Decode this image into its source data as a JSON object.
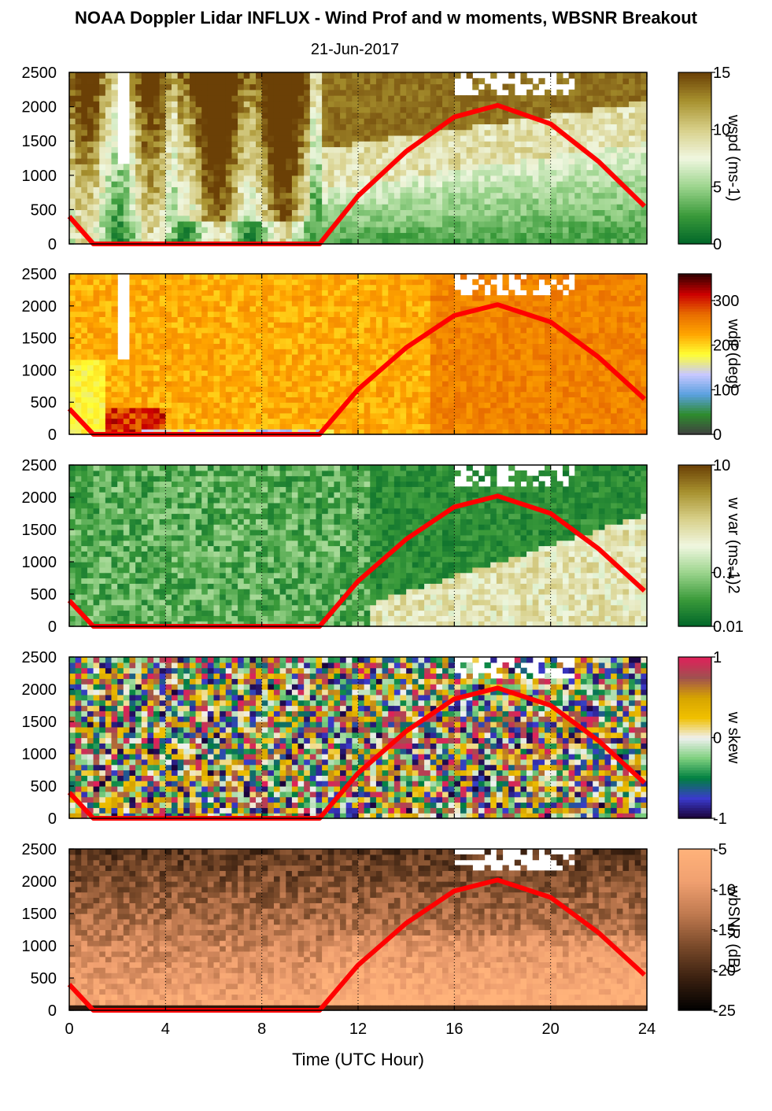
{
  "title": "NOAA Doppler Lidar INFLUX - Wind Prof and w moments, WBSNR Breakout",
  "subtitle": "21-Jun-2017",
  "xaxis": {
    "label": "Time (UTC Hour)",
    "ticks": [
      "0",
      "4",
      "8",
      "12",
      "16",
      "20",
      "24"
    ],
    "range": [
      0,
      24
    ]
  },
  "yaxis": {
    "ticks": [
      "0",
      "500",
      "1000",
      "1500",
      "2000",
      "2500"
    ],
    "range": [
      0,
      2500
    ]
  },
  "chart_data": [
    {
      "type": "heatmap",
      "variable": "wspd",
      "colorbar_label": "wspd (ms-1)",
      "colorbar_ticks": [
        "0",
        "5",
        "10",
        "15"
      ],
      "clim": [
        0,
        15
      ],
      "colors": [
        "#006629",
        "#3a9a3a",
        "#9bd48c",
        "#f0f7e0",
        "#d8d08a",
        "#a8922f",
        "#6b4006"
      ],
      "overlay": {
        "name": "",
        "color": "#ff0000"
      }
    },
    {
      "type": "heatmap",
      "variable": "wdir",
      "colorbar_label": "wdir (deg)",
      "colorbar_ticks": [
        "0",
        "100",
        "200",
        "300"
      ],
      "clim": [
        0,
        360
      ],
      "colors": [
        "#404040",
        "#2e8b2e",
        "#5aa0e0",
        "#c8c8ff",
        "#ffff33",
        "#ffa500",
        "#e86d00",
        "#cc0000",
        "#300000"
      ],
      "overlay": {
        "name": "",
        "color": "#ff0000"
      }
    },
    {
      "type": "heatmap",
      "variable": "w var",
      "colorbar_label": "w var (ms-1)2",
      "colorbar_ticks": [
        "0.01",
        "0.1",
        "10"
      ],
      "clim": [
        0.01,
        10
      ],
      "log_scale": true,
      "colors": [
        "#006629",
        "#3a9a3a",
        "#9bd48c",
        "#f0f7e0",
        "#d8d08a",
        "#a8922f",
        "#6b4006"
      ],
      "overlay": {
        "name": "",
        "color": "#ff0000"
      }
    },
    {
      "type": "heatmap",
      "variable": "w skew",
      "colorbar_label": "w skew",
      "colorbar_ticks": [
        "-1",
        "0",
        "1"
      ],
      "clim": [
        -1,
        1
      ],
      "colors": [
        "#1a0033",
        "#3a3acc",
        "#008040",
        "#7fd07f",
        "#f0f0f0",
        "#f0c000",
        "#d6a400",
        "#a05050",
        "#e0205a"
      ],
      "overlay": {
        "name": "",
        "color": "#ff0000"
      }
    },
    {
      "type": "heatmap",
      "variable": "wbSNR",
      "colorbar_label": "wbSNR (dB)",
      "colorbar_ticks": [
        "-25",
        "-20",
        "-15",
        "-10",
        "-5"
      ],
      "clim": [
        -25,
        -5
      ],
      "colors": [
        "#000000",
        "#3a2010",
        "#7a4a2a",
        "#c07a50",
        "#f0a070",
        "#ffb27a"
      ],
      "overlay": {
        "name": "",
        "color": "#ff0000"
      }
    }
  ],
  "sun_curve": {
    "x": [
      0,
      1,
      2,
      4,
      6,
      8,
      10.4,
      12,
      14,
      16,
      17.8,
      20,
      22,
      23.9
    ],
    "y": [
      400,
      0,
      0,
      0,
      0,
      0,
      0,
      700,
      1350,
      1850,
      2020,
      1750,
      1200,
      550
    ]
  }
}
